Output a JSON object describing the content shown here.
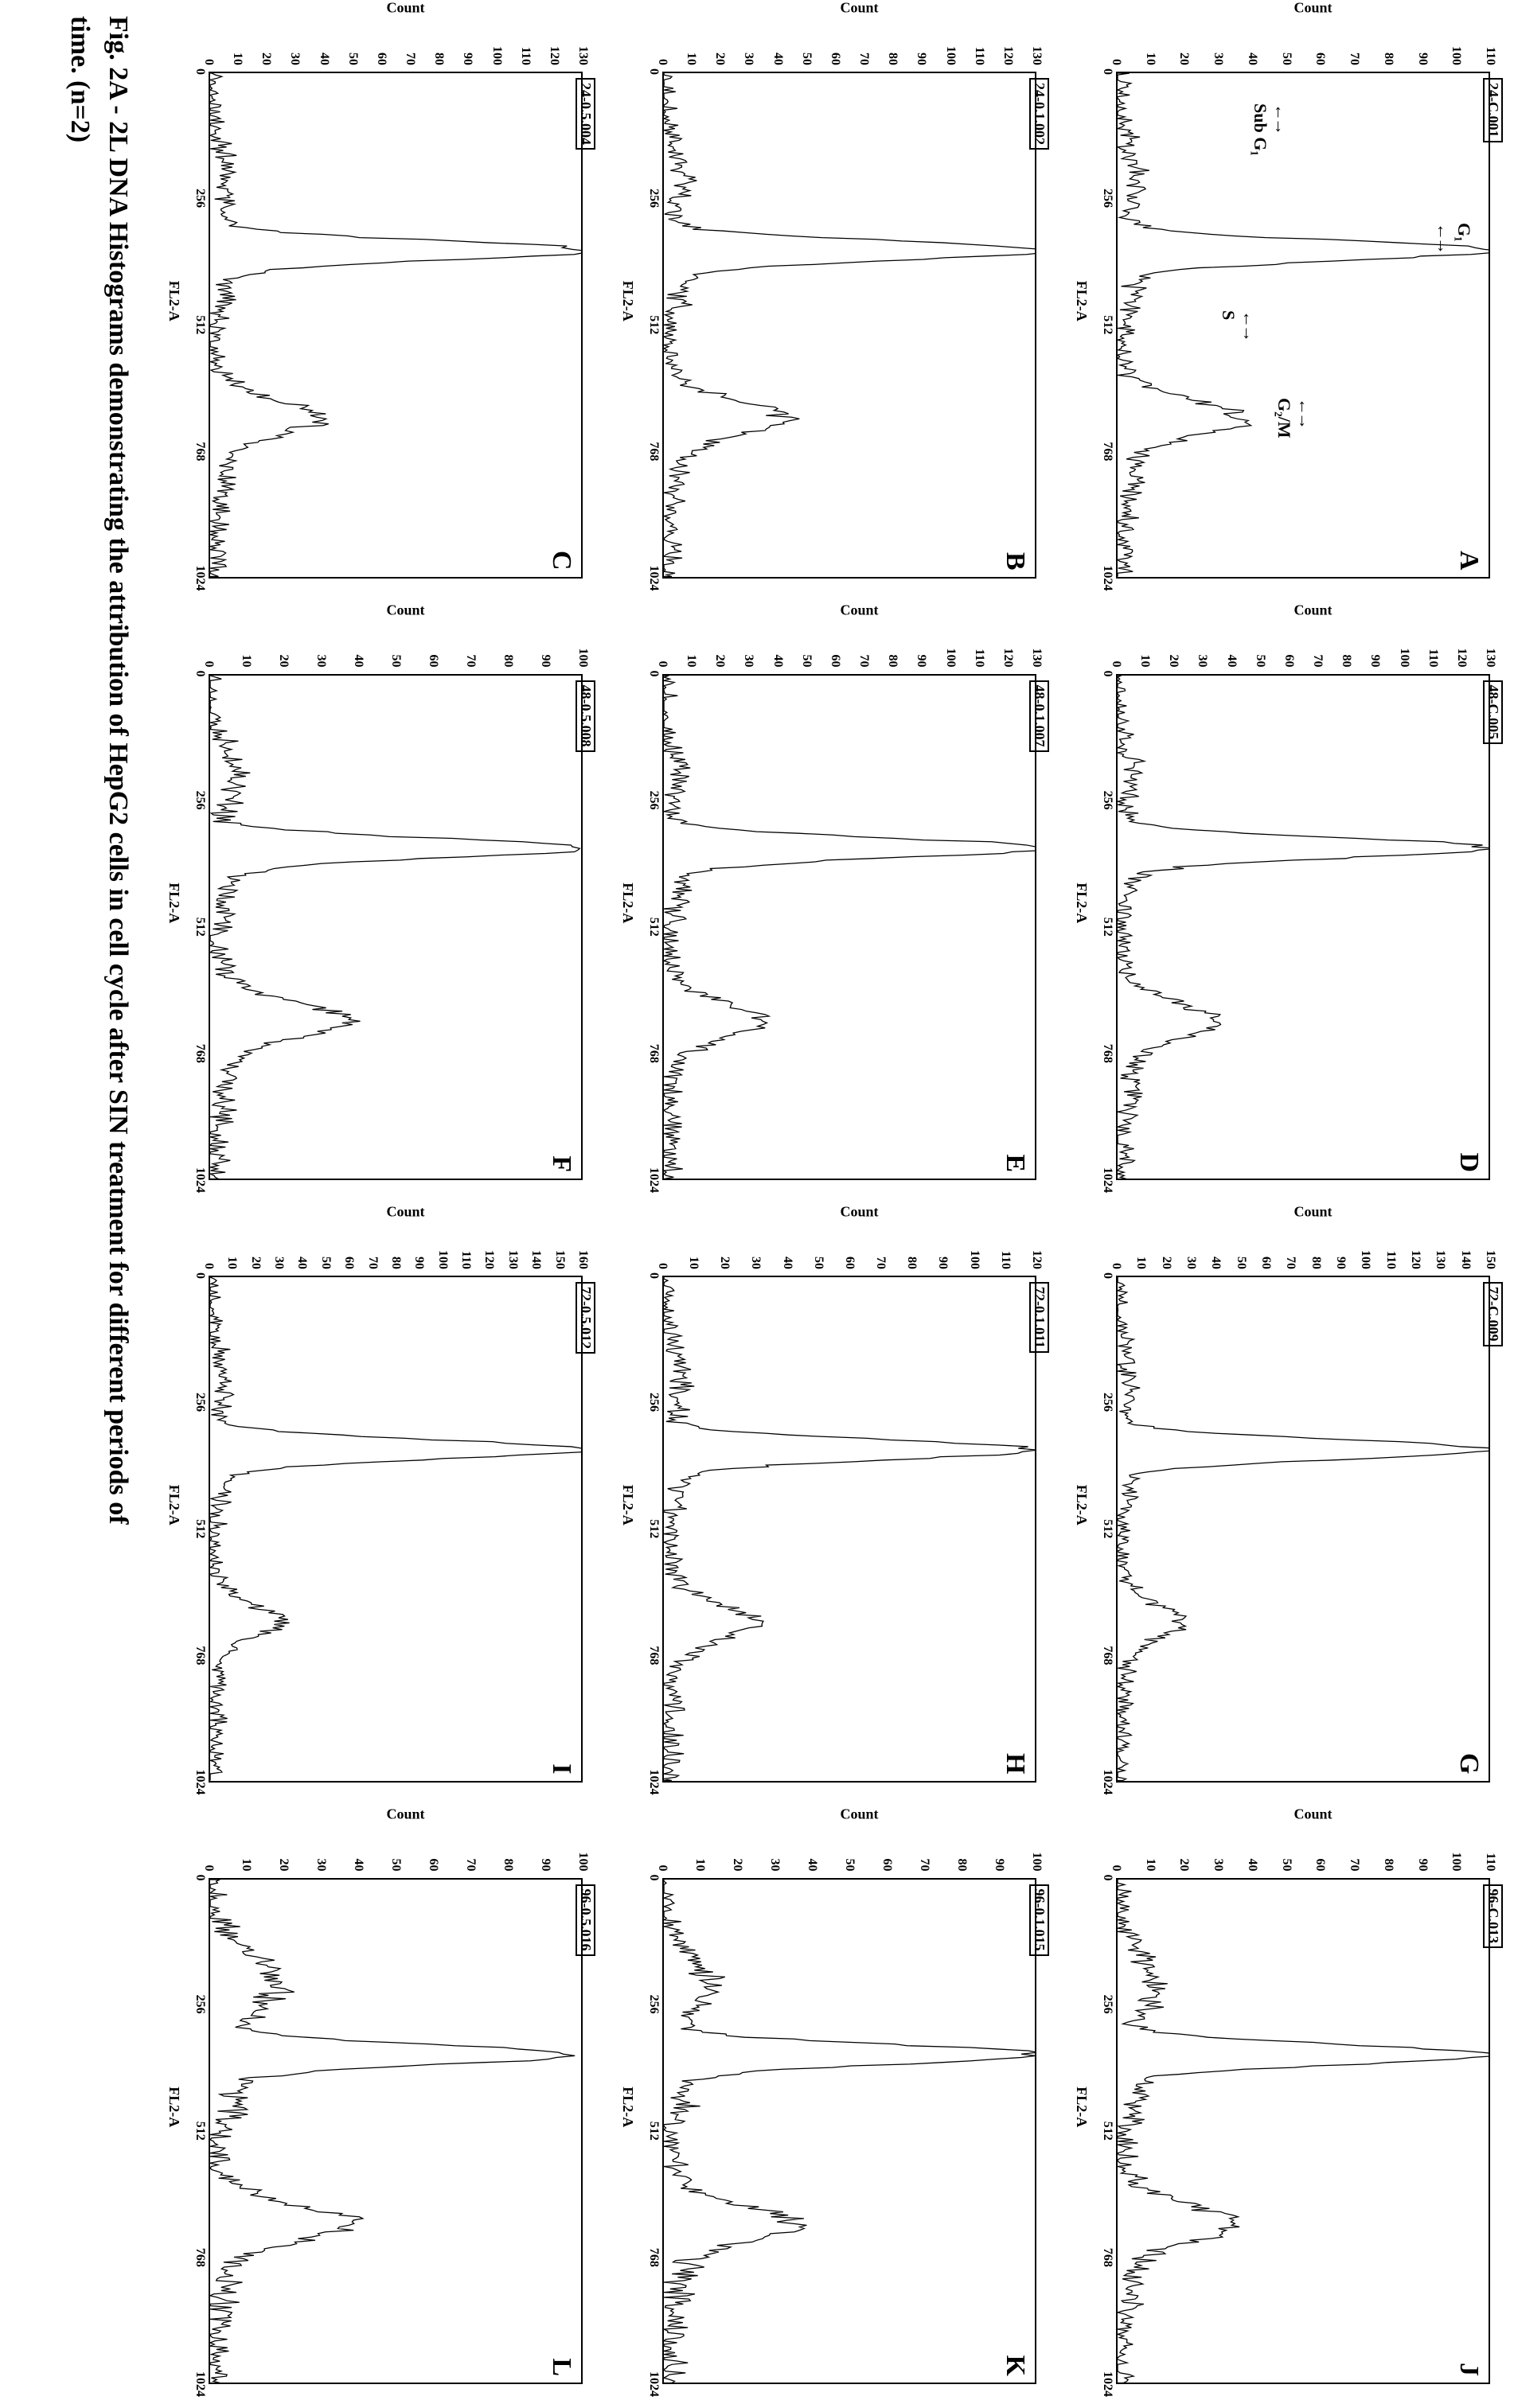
{
  "figure": {
    "caption_line1": "Fig. 2A - 2L  DNA Histograms demonstrating the attribution of HepG2 cells in cell cycle after SIN treatment for different periods of",
    "caption_line2": "time. (n=2)",
    "x_axis_label": "FL2-A",
    "y_axis_label": "Count",
    "x_ticks": [
      0,
      256,
      512,
      768,
      1024
    ],
    "xlim": [
      0,
      1024
    ],
    "background_color": "#ffffff",
    "line_color": "#000000",
    "axis_color": "#000000",
    "font_family": "Times New Roman",
    "annotations": {
      "sub_g1": "Sub G₁",
      "g1": "G₁",
      "s": "S",
      "g2m": "G₂/M"
    },
    "panels": [
      {
        "id": "A",
        "header": "24-C.001",
        "ymax": 110,
        "ytick_step": 10,
        "g1_peak_x": 360,
        "g2m_peak_x": 700,
        "g1_height": 1.0,
        "g2m_height": 0.28,
        "sub_g1": 0.06,
        "s_height": 0.1,
        "noise": 0.12,
        "show_annotations": true
      },
      {
        "id": "B",
        "header": "24-0.1.002",
        "ymax": 130,
        "ytick_step": 10,
        "g1_peak_x": 360,
        "g2m_peak_x": 700,
        "g1_height": 1.0,
        "g2m_height": 0.26,
        "sub_g1": 0.05,
        "s_height": 0.11,
        "noise": 0.12
      },
      {
        "id": "C",
        "header": "24-0.5.004",
        "ymax": 130,
        "ytick_step": 10,
        "g1_peak_x": 360,
        "g2m_peak_x": 700,
        "g1_height": 1.0,
        "g2m_height": 0.24,
        "sub_g1": 0.05,
        "s_height": 0.1,
        "noise": 0.12
      },
      {
        "id": "D",
        "header": "48-C.005",
        "ymax": 130,
        "ytick_step": 10,
        "g1_peak_x": 350,
        "g2m_peak_x": 700,
        "g1_height": 1.0,
        "g2m_height": 0.22,
        "sub_g1": 0.04,
        "s_height": 0.09,
        "noise": 0.12
      },
      {
        "id": "E",
        "header": "48-0.1.007",
        "ymax": 130,
        "ytick_step": 10,
        "g1_peak_x": 350,
        "g2m_peak_x": 700,
        "g1_height": 1.0,
        "g2m_height": 0.21,
        "sub_g1": 0.04,
        "s_height": 0.1,
        "noise": 0.12
      },
      {
        "id": "F",
        "header": "48-0.5.008",
        "ymax": 100,
        "ytick_step": 10,
        "g1_peak_x": 350,
        "g2m_peak_x": 700,
        "g1_height": 1.0,
        "g2m_height": 0.3,
        "sub_g1": 0.07,
        "s_height": 0.13,
        "noise": 0.14
      },
      {
        "id": "G",
        "header": "72-C.009",
        "ymax": 150,
        "ytick_step": 10,
        "g1_peak_x": 350,
        "g2m_peak_x": 700,
        "g1_height": 1.0,
        "g2m_height": 0.14,
        "sub_g1": 0.03,
        "s_height": 0.06,
        "noise": 0.1
      },
      {
        "id": "H",
        "header": "72-0.1.011",
        "ymax": 120,
        "ytick_step": 10,
        "g1_peak_x": 350,
        "g2m_peak_x": 700,
        "g1_height": 1.0,
        "g2m_height": 0.2,
        "sub_g1": 0.05,
        "s_height": 0.09,
        "noise": 0.12
      },
      {
        "id": "I",
        "header": "72-0.5.012",
        "ymax": 160,
        "ytick_step": 10,
        "g1_peak_x": 350,
        "g2m_peak_x": 700,
        "g1_height": 1.0,
        "g2m_height": 0.15,
        "sub_g1": 0.04,
        "s_height": 0.07,
        "noise": 0.1
      },
      {
        "id": "J",
        "header": "96-C.013",
        "ymax": 110,
        "ytick_step": 10,
        "g1_peak_x": 355,
        "g2m_peak_x": 700,
        "g1_height": 1.0,
        "g2m_height": 0.26,
        "sub_g1": 0.1,
        "s_height": 0.13,
        "noise": 0.14
      },
      {
        "id": "K",
        "header": "96-0.1.015",
        "ymax": 100,
        "ytick_step": 10,
        "g1_peak_x": 355,
        "g2m_peak_x": 700,
        "g1_height": 1.0,
        "g2m_height": 0.28,
        "sub_g1": 0.12,
        "s_height": 0.14,
        "noise": 0.15
      },
      {
        "id": "L",
        "header": "96-0.5.016",
        "ymax": 100,
        "ytick_step": 10,
        "g1_peak_x": 355,
        "g2m_peak_x": 700,
        "g1_height": 1.0,
        "g2m_height": 0.3,
        "sub_g1": 0.18,
        "s_height": 0.16,
        "noise": 0.16
      }
    ]
  }
}
